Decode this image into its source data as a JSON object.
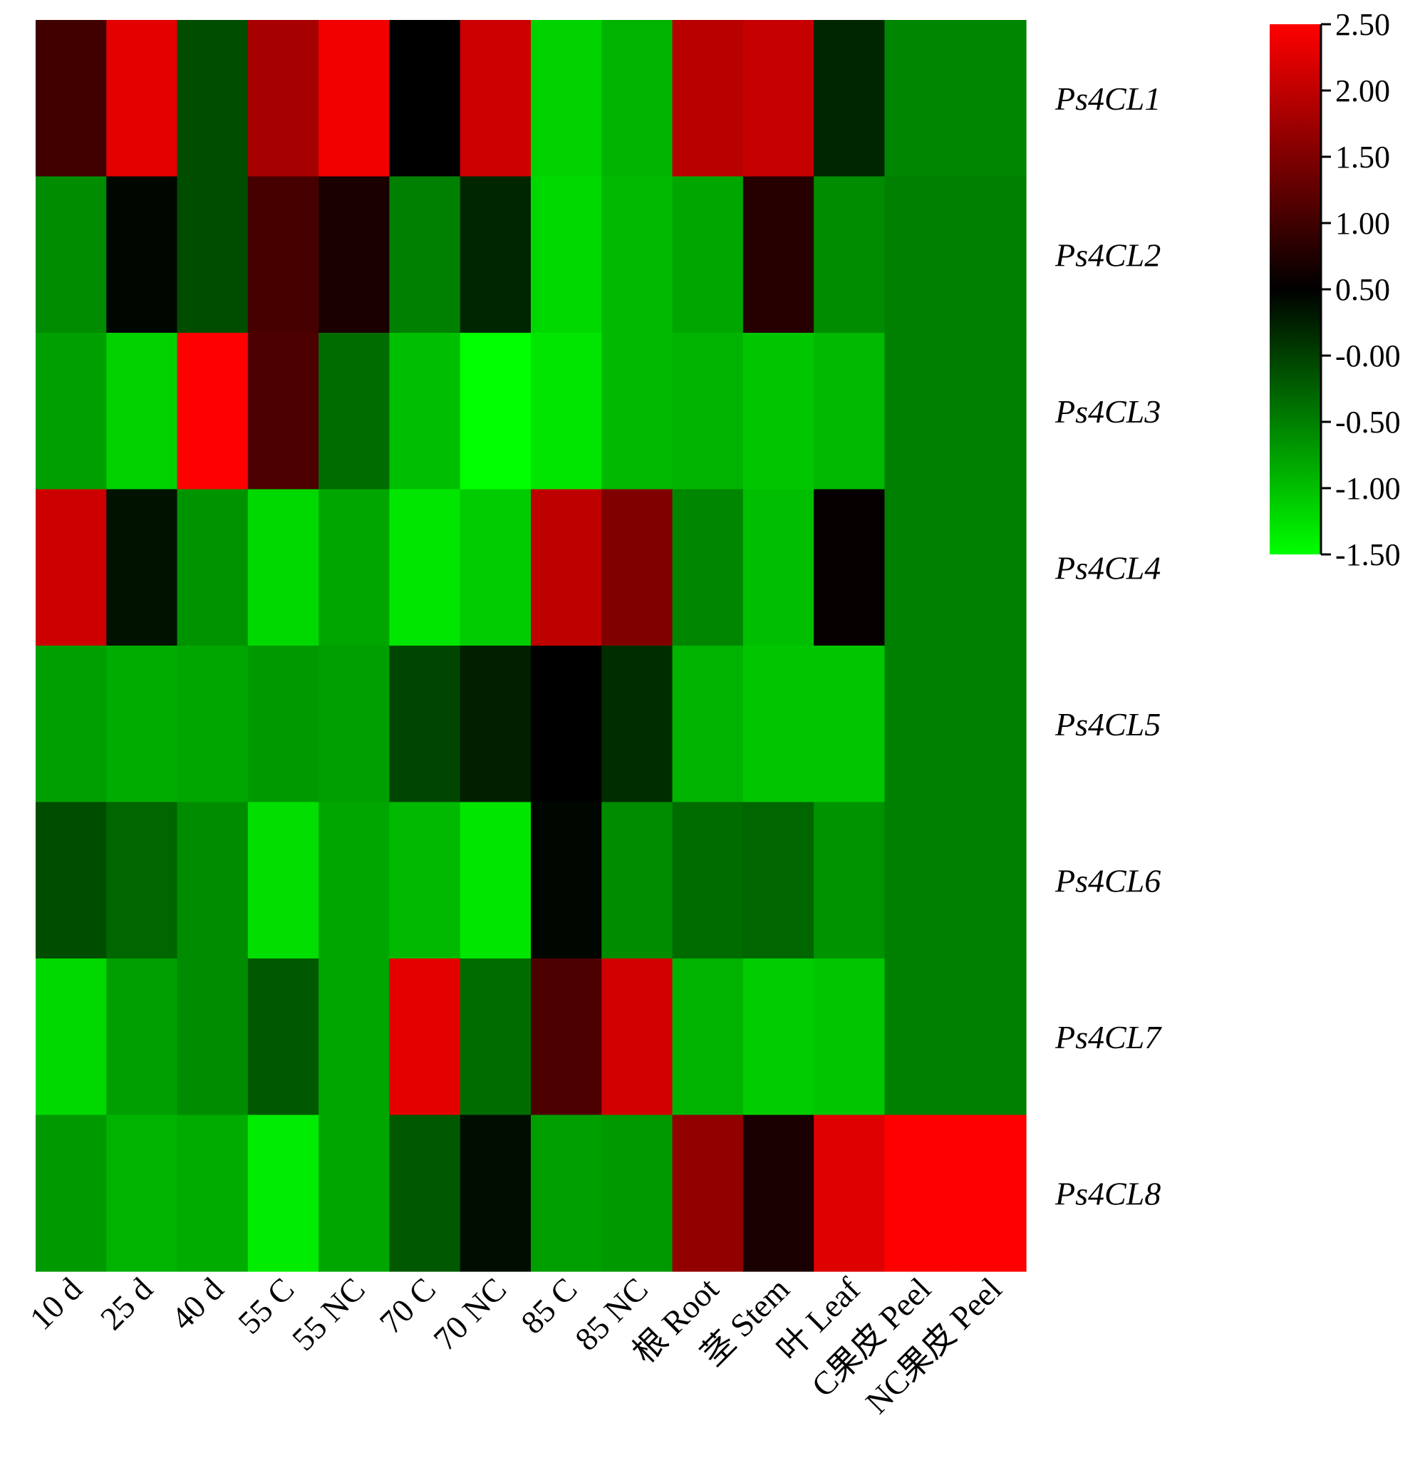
{
  "chart_data": {
    "type": "heatmap",
    "title": "",
    "xlabel": "",
    "ylabel": "",
    "columns": [
      "10 d",
      "25 d",
      "40 d",
      "55 C",
      "55 NC",
      "70 C",
      "70 NC",
      "85 C",
      "85 NC",
      "根 Root",
      "茎 Stem",
      "叶 Leaf",
      "C果皮 Peel",
      "NC果皮 Peel"
    ],
    "rows": [
      "Ps4CL1",
      "Ps4CL2",
      "Ps4CL3",
      "Ps4CL4",
      "Ps4CL5",
      "Ps4CL6",
      "Ps4CL7",
      "Ps4CL8"
    ],
    "values": [
      [
        1.0,
        2.3,
        -0.1,
        1.8,
        2.4,
        0.5,
        2.1,
        -1.15,
        -0.9,
        1.95,
        2.05,
        0.2,
        -0.55,
        -0.55
      ],
      [
        -0.6,
        0.45,
        -0.1,
        1.05,
        0.7,
        -0.5,
        0.2,
        -1.2,
        -0.95,
        -0.8,
        0.8,
        -0.6,
        -0.5,
        -0.5
      ],
      [
        -0.75,
        -1.15,
        2.5,
        1.1,
        -0.35,
        -1.0,
        -1.5,
        -1.3,
        -0.95,
        -0.9,
        -1.05,
        -0.95,
        -0.5,
        -0.5
      ],
      [
        2.1,
        0.35,
        -0.65,
        -1.2,
        -0.8,
        -1.3,
        -1.1,
        2.0,
        1.5,
        -0.55,
        -1.0,
        0.55,
        -0.5,
        -0.5
      ],
      [
        -0.75,
        -0.85,
        -0.8,
        -0.7,
        -0.75,
        -0.05,
        0.25,
        0.5,
        0.15,
        -0.9,
        -1.05,
        -1.05,
        -0.5,
        -0.5
      ],
      [
        -0.1,
        -0.3,
        -0.6,
        -1.25,
        -0.8,
        -0.95,
        -1.3,
        0.45,
        -0.6,
        -0.35,
        -0.3,
        -0.65,
        -0.5,
        -0.5
      ],
      [
        -1.2,
        -0.75,
        -0.6,
        -0.2,
        -0.8,
        2.3,
        -0.35,
        1.1,
        2.15,
        -0.9,
        -1.1,
        -1.05,
        -0.5,
        -0.5
      ],
      [
        -0.7,
        -0.9,
        -0.85,
        -1.35,
        -0.8,
        -0.2,
        0.4,
        -0.75,
        -0.7,
        1.65,
        0.7,
        2.25,
        2.5,
        2.5
      ]
    ],
    "colorbar": {
      "min": -1.5,
      "max": 2.5,
      "colors": [
        "#00ff00",
        "#000000",
        "#ff0000"
      ],
      "ticks": [
        2.5,
        2.0,
        1.5,
        1.0,
        0.5,
        0.0,
        -0.5,
        -1.0,
        -1.5
      ],
      "tick_labels": [
        "2.50",
        "2.00",
        "1.50",
        "1.00",
        "0.50",
        "-0.00",
        "-0.50",
        "-1.00",
        "-1.50"
      ]
    },
    "grid": false,
    "legend": "colorbar top-right"
  }
}
